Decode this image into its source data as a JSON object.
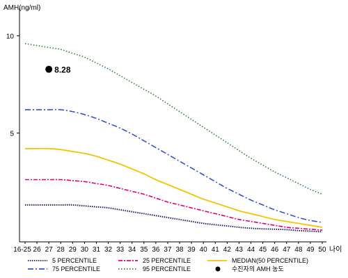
{
  "chart_data": {
    "type": "line",
    "ylabel": "AMH(ng/ml)",
    "xlabel": "나이",
    "categories": [
      "16-25",
      "26",
      "27",
      "28",
      "29",
      "30",
      "31",
      "32",
      "33",
      "34",
      "35",
      "36",
      "37",
      "38",
      "39",
      "40",
      "41",
      "42",
      "43",
      "44",
      "45",
      "46",
      "47",
      "48",
      "49",
      "50"
    ],
    "y_ticks": [
      5,
      10
    ],
    "ylim": [
      -0.6,
      11.2
    ],
    "series": [
      {
        "name": "95 PERCENTILE",
        "color": "#2e7d32",
        "dash": "1.5,2.5",
        "width": 1.6,
        "values": [
          9.6,
          9.5,
          9.4,
          9.3,
          9.1,
          8.9,
          8.6,
          8.3,
          7.95,
          7.6,
          7.25,
          6.9,
          6.5,
          6.1,
          5.7,
          5.3,
          4.9,
          4.5,
          4.1,
          3.7,
          3.35,
          3.0,
          2.7,
          2.4,
          2.1,
          1.85
        ]
      },
      {
        "name": "75 PERCENTILE",
        "color": "#3355cc",
        "dash": "8,3,2,3",
        "width": 1.6,
        "values": [
          6.2,
          6.2,
          6.2,
          6.2,
          6.1,
          5.95,
          5.75,
          5.5,
          5.25,
          4.95,
          4.6,
          4.25,
          3.9,
          3.55,
          3.2,
          2.85,
          2.5,
          2.15,
          1.85,
          1.55,
          1.3,
          1.05,
          0.85,
          0.65,
          0.5,
          0.4
        ]
      },
      {
        "name": "MEDIAN(50 PERCENTILE)",
        "color": "#f5c400",
        "dash": "",
        "width": 1.8,
        "values": [
          4.2,
          4.2,
          4.2,
          4.15,
          4.05,
          3.95,
          3.8,
          3.6,
          3.4,
          3.15,
          2.9,
          2.6,
          2.35,
          2.1,
          1.85,
          1.6,
          1.4,
          1.2,
          1.0,
          0.85,
          0.7,
          0.55,
          0.45,
          0.35,
          0.25,
          0.15
        ]
      },
      {
        "name": "25 PERCENTILE",
        "color": "#e0007a",
        "dash": "6,2,2,2",
        "width": 1.6,
        "values": [
          2.6,
          2.6,
          2.6,
          2.6,
          2.55,
          2.5,
          2.4,
          2.3,
          2.15,
          2.0,
          1.85,
          1.65,
          1.45,
          1.3,
          1.15,
          1.0,
          0.85,
          0.7,
          0.55,
          0.45,
          0.35,
          0.25,
          0.15,
          0.1,
          0.05,
          0.0
        ]
      },
      {
        "name": "5 PERCENTILE",
        "color": "#1a1a66",
        "dash": "1.5,1.5",
        "width": 2.0,
        "values": [
          1.3,
          1.3,
          1.3,
          1.3,
          1.3,
          1.25,
          1.2,
          1.15,
          1.05,
          0.95,
          0.85,
          0.75,
          0.65,
          0.55,
          0.45,
          0.35,
          0.28,
          0.22,
          0.15,
          0.1,
          0.07,
          0.05,
          0.03,
          -0.02,
          -0.05,
          -0.08
        ]
      }
    ],
    "patient_point": {
      "x": "27",
      "value": 8.28,
      "label": "8.28",
      "color": "#000000"
    },
    "legend_entries": [
      {
        "name": "5 PERCENTILE",
        "color": "#1a1a66",
        "dash": "1.5,1.5"
      },
      {
        "name": "25 PERCENTILE",
        "color": "#e0007a",
        "dash": "6,2,2,2"
      },
      {
        "name": "MEDIAN(50 PERCENTILE)",
        "color": "#f5c400",
        "dash": ""
      },
      {
        "name": "75 PERCENTILE",
        "color": "#3355cc",
        "dash": "8,3,2,3"
      },
      {
        "name": "95 PERCENTILE",
        "color": "#2e7d32",
        "dash": "1.5,2.5"
      },
      {
        "name": "수진자의 AMH 농도",
        "color": "#000000",
        "marker": true
      }
    ],
    "legend_placement": "bottom"
  }
}
